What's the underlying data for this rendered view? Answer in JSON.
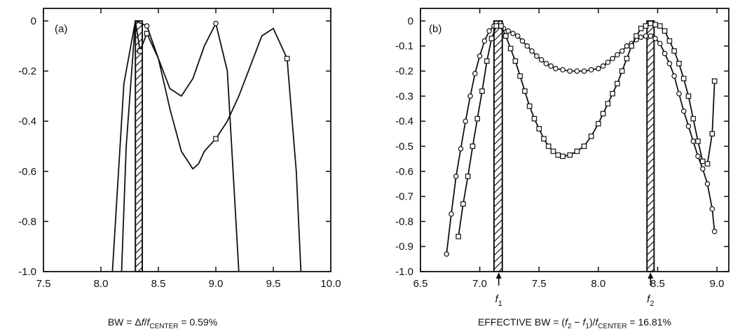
{
  "chart_data": [
    {
      "type": "line",
      "panel_label": "(a)",
      "xlim": [
        7.5,
        10.0
      ],
      "ylim": [
        -1.0,
        0.05
      ],
      "x_ticks": [
        "7.5",
        "8.0",
        "8.5",
        "9.0",
        "9.5",
        "10.0"
      ],
      "y_ticks": [
        "0",
        "-0.2",
        "-0.4",
        "-0.6",
        "-0.8",
        "-1.0"
      ],
      "x_tick_values": [
        7.5,
        8.0,
        8.5,
        9.0,
        9.5,
        10.0
      ],
      "y_tick_values": [
        0,
        -0.2,
        -0.4,
        -0.6,
        -0.8,
        -1.0
      ],
      "caption": {
        "before": "BW = Δ",
        "f_ital": "f",
        "slash": "/",
        "f2_ital": "f",
        "sub": "CENTER",
        "after": " = 0.59%"
      },
      "bars": [
        {
          "x0": 8.3,
          "x1": 8.36
        }
      ],
      "series": [
        {
          "marker": "square",
          "x": [
            8.18,
            8.22,
            8.3,
            8.34,
            8.4,
            8.5,
            8.6,
            8.7,
            8.8,
            8.85,
            8.9,
            9.0,
            9.1,
            9.2,
            9.3,
            9.4,
            9.5,
            9.62,
            9.7,
            9.74
          ],
          "y": [
            -1.0,
            -0.5,
            0.0,
            -0.12,
            -0.05,
            -0.15,
            -0.35,
            -0.52,
            -0.59,
            -0.57,
            -0.52,
            -0.47,
            -0.4,
            -0.3,
            -0.18,
            -0.06,
            -0.03,
            -0.15,
            -0.6,
            -1.0
          ],
          "markers_at": [
            8.34,
            8.4,
            9.0,
            9.62
          ]
        },
        {
          "marker": "circle",
          "x": [
            8.1,
            8.2,
            8.3,
            8.4,
            8.5,
            8.6,
            8.7,
            8.8,
            8.9,
            9.0,
            9.1,
            9.15,
            9.2
          ],
          "y": [
            -1.0,
            -0.25,
            0.0,
            -0.02,
            -0.15,
            -0.27,
            -0.3,
            -0.23,
            -0.1,
            -0.01,
            -0.2,
            -0.6,
            -1.0
          ],
          "markers_at": [
            8.4,
            9.0
          ]
        }
      ]
    },
    {
      "type": "line",
      "panel_label": "(b)",
      "xlim": [
        6.5,
        9.1
      ],
      "ylim": [
        -1.0,
        0.05
      ],
      "x_ticks": [
        "6.5",
        "7.0",
        "7.5",
        "8.0",
        "8.5",
        "9.0"
      ],
      "y_ticks": [
        "0",
        "-0.1",
        "-0.2",
        "-0.3",
        "-0.4",
        "-0.5",
        "-0.6",
        "-0.7",
        "-0.8",
        "-0.9",
        "-1.0"
      ],
      "x_tick_values": [
        6.5,
        7.0,
        7.5,
        8.0,
        8.5,
        9.0
      ],
      "y_tick_values": [
        0,
        -0.1,
        -0.2,
        -0.3,
        -0.4,
        -0.5,
        -0.6,
        -0.7,
        -0.8,
        -0.9,
        -1.0
      ],
      "annotations": [
        {
          "label": "f",
          "sub": "1",
          "x": 7.16
        },
        {
          "label": "f",
          "sub": "2",
          "x": 8.44
        }
      ],
      "caption": {
        "before": "EFFECTIVE BW = (",
        "f1": "f",
        "sub1": "2",
        "mid": " − ",
        "f2": "f",
        "sub2": "1",
        "close": ")/",
        "f3": "f",
        "sub3": "CENTER",
        "after": " = 16.81%"
      },
      "bars": [
        {
          "x0": 7.12,
          "x1": 7.19
        },
        {
          "x0": 8.41,
          "x1": 8.47
        }
      ],
      "series": [
        {
          "marker": "circle",
          "x": [
            6.72,
            6.76,
            6.8,
            6.84,
            6.88,
            6.92,
            6.96,
            7.0,
            7.04,
            7.08,
            7.12,
            7.16,
            7.2,
            7.24,
            7.28,
            7.32,
            7.36,
            7.4,
            7.44,
            7.48,
            7.52,
            7.56,
            7.6,
            7.64,
            7.7,
            7.76,
            7.82,
            7.88,
            7.94,
            8.0,
            8.04,
            8.08,
            8.12,
            8.16,
            8.2,
            8.24,
            8.28,
            8.32,
            8.36,
            8.4,
            8.44,
            8.48,
            8.52,
            8.56,
            8.6,
            8.64,
            8.68,
            8.72,
            8.76,
            8.8,
            8.84,
            8.88,
            8.92,
            8.96,
            8.98
          ],
          "y": [
            -0.93,
            -0.77,
            -0.62,
            -0.51,
            -0.4,
            -0.3,
            -0.21,
            -0.14,
            -0.08,
            -0.04,
            -0.02,
            -0.02,
            -0.03,
            -0.04,
            -0.05,
            -0.06,
            -0.08,
            -0.1,
            -0.12,
            -0.14,
            -0.155,
            -0.17,
            -0.18,
            -0.19,
            -0.195,
            -0.2,
            -0.2,
            -0.2,
            -0.195,
            -0.19,
            -0.18,
            -0.165,
            -0.15,
            -0.135,
            -0.12,
            -0.1,
            -0.09,
            -0.075,
            -0.065,
            -0.06,
            -0.06,
            -0.07,
            -0.09,
            -0.13,
            -0.17,
            -0.22,
            -0.29,
            -0.36,
            -0.42,
            -0.48,
            -0.54,
            -0.59,
            -0.65,
            -0.75,
            -0.84
          ]
        },
        {
          "marker": "square",
          "x": [
            6.82,
            6.86,
            6.9,
            6.94,
            6.98,
            7.02,
            7.06,
            7.1,
            7.14,
            7.18,
            7.22,
            7.26,
            7.3,
            7.34,
            7.38,
            7.42,
            7.46,
            7.5,
            7.54,
            7.58,
            7.62,
            7.66,
            7.7,
            7.76,
            7.82,
            7.88,
            7.94,
            8.0,
            8.04,
            8.08,
            8.12,
            8.16,
            8.2,
            8.24,
            8.28,
            8.32,
            8.36,
            8.4,
            8.44,
            8.48,
            8.52,
            8.56,
            8.6,
            8.64,
            8.68,
            8.72,
            8.76,
            8.8,
            8.84,
            8.88,
            8.92,
            8.96,
            8.98
          ],
          "y": [
            -0.86,
            -0.73,
            -0.62,
            -0.5,
            -0.39,
            -0.28,
            -0.16,
            -0.07,
            -0.02,
            -0.02,
            -0.06,
            -0.11,
            -0.16,
            -0.22,
            -0.28,
            -0.34,
            -0.39,
            -0.43,
            -0.47,
            -0.5,
            -0.52,
            -0.535,
            -0.54,
            -0.535,
            -0.52,
            -0.5,
            -0.46,
            -0.41,
            -0.37,
            -0.33,
            -0.29,
            -0.25,
            -0.2,
            -0.15,
            -0.1,
            -0.06,
            -0.03,
            -0.02,
            -0.01,
            -0.015,
            -0.02,
            -0.04,
            -0.08,
            -0.12,
            -0.17,
            -0.23,
            -0.3,
            -0.39,
            -0.48,
            -0.56,
            -0.57,
            -0.45,
            -0.24
          ]
        }
      ]
    }
  ]
}
